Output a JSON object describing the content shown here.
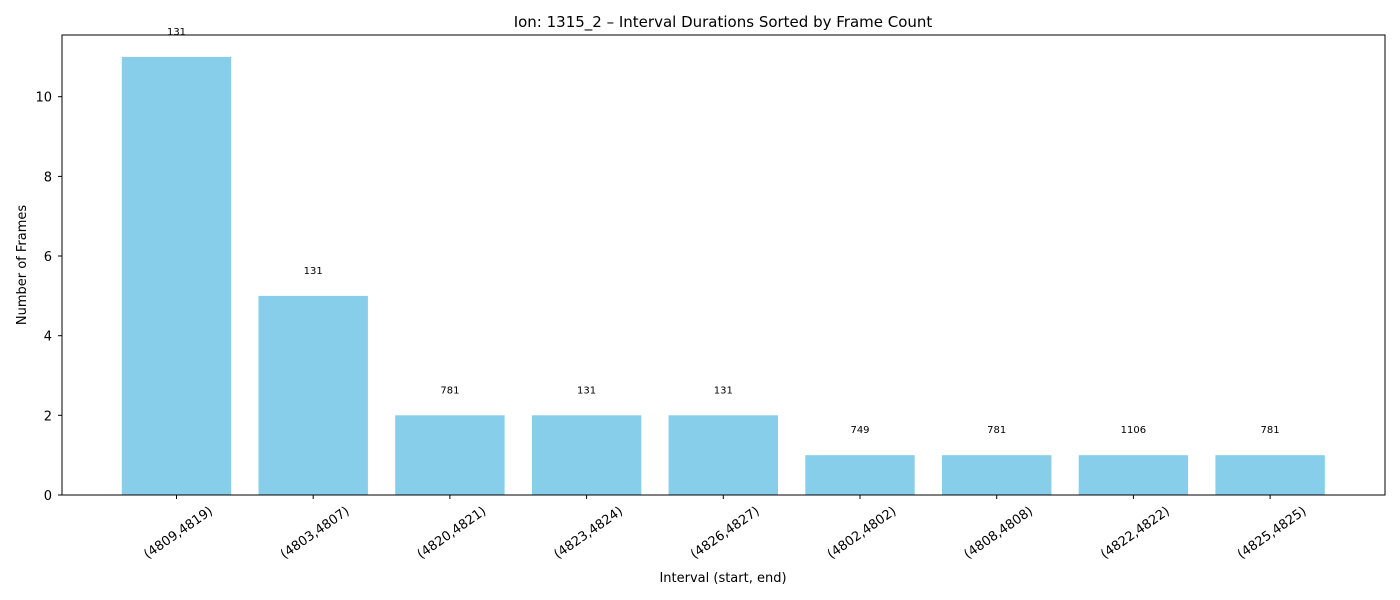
{
  "chart_data": {
    "type": "bar",
    "title": "Ion: 1315_2 – Interval Durations Sorted by Frame Count",
    "xlabel": "Interval (start, end)",
    "ylabel": "Number of Frames",
    "categories": [
      "(4809,4819)",
      "(4803,4807)",
      "(4820,4821)",
      "(4823,4824)",
      "(4826,4827)",
      "(4802,4802)",
      "(4808,4808)",
      "(4822,4822)",
      "(4825,4825)"
    ],
    "values": [
      11,
      5,
      2,
      2,
      2,
      1,
      1,
      1,
      1
    ],
    "bar_labels": [
      "131",
      "131",
      "781",
      "131",
      "131",
      "749",
      "781",
      "1106",
      "781"
    ],
    "ylim": [
      0,
      11.55
    ],
    "yticks": [
      0,
      2,
      4,
      6,
      8,
      10
    ],
    "bar_color": "#87ceeb",
    "grid": false,
    "legend": "none"
  }
}
